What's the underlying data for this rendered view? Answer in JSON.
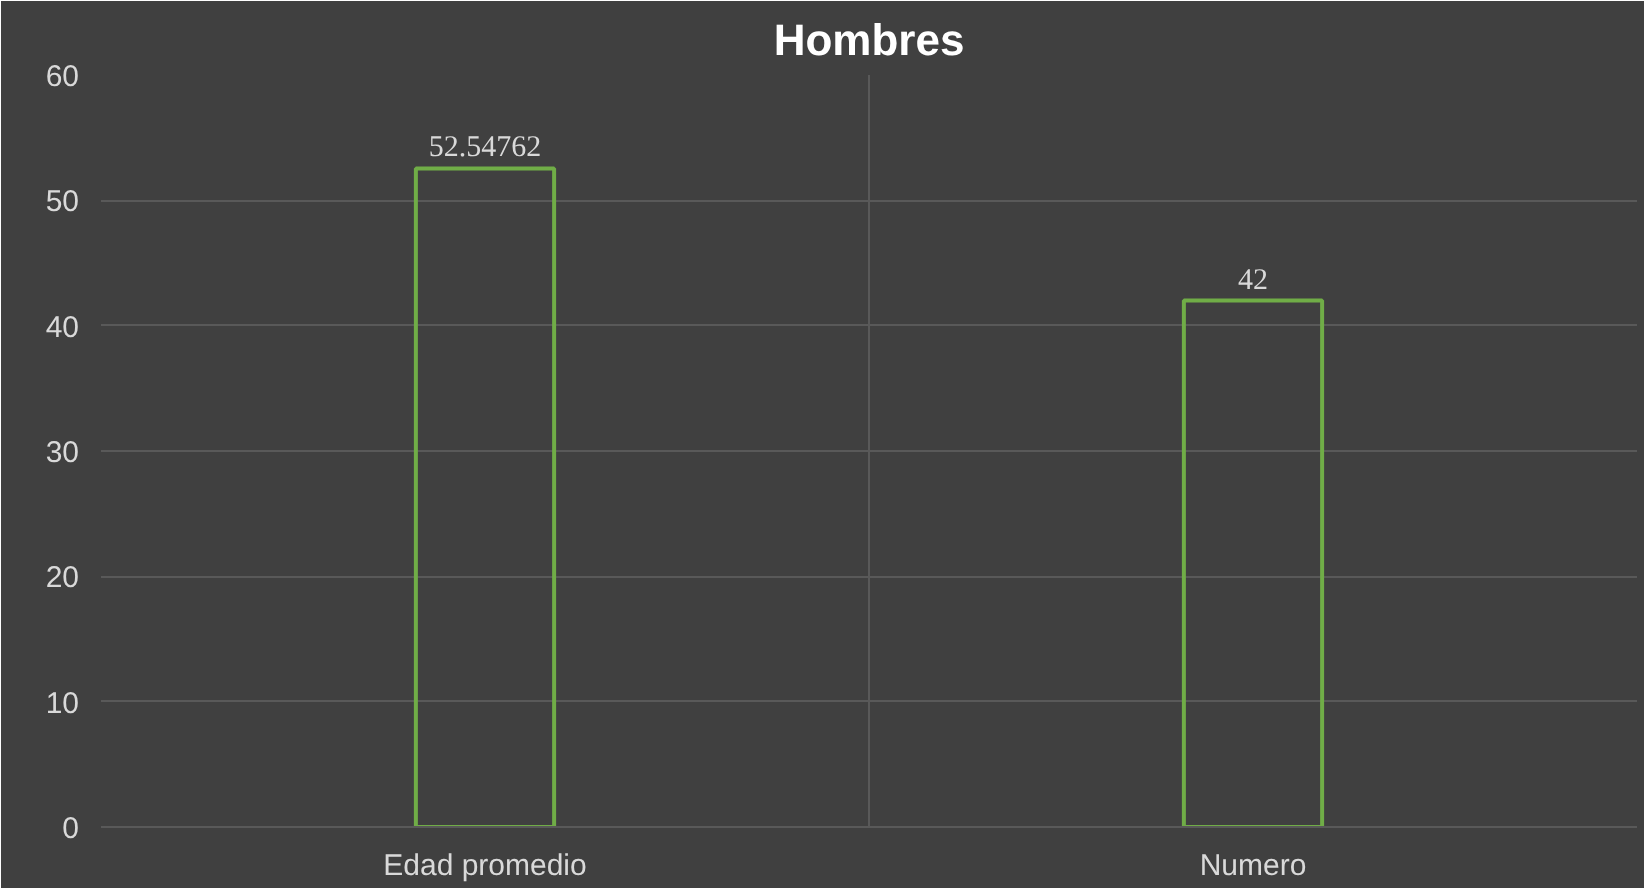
{
  "chart_data": {
    "type": "bar",
    "title": "Hombres",
    "categories": [
      "Edad promedio",
      "Numero"
    ],
    "values": [
      52.54762,
      42
    ],
    "color": "#70ad47",
    "ylim": [
      0,
      60
    ],
    "yticks": [
      0,
      10,
      20,
      30,
      40,
      50,
      60
    ],
    "grid": true,
    "data_labels": true
  }
}
